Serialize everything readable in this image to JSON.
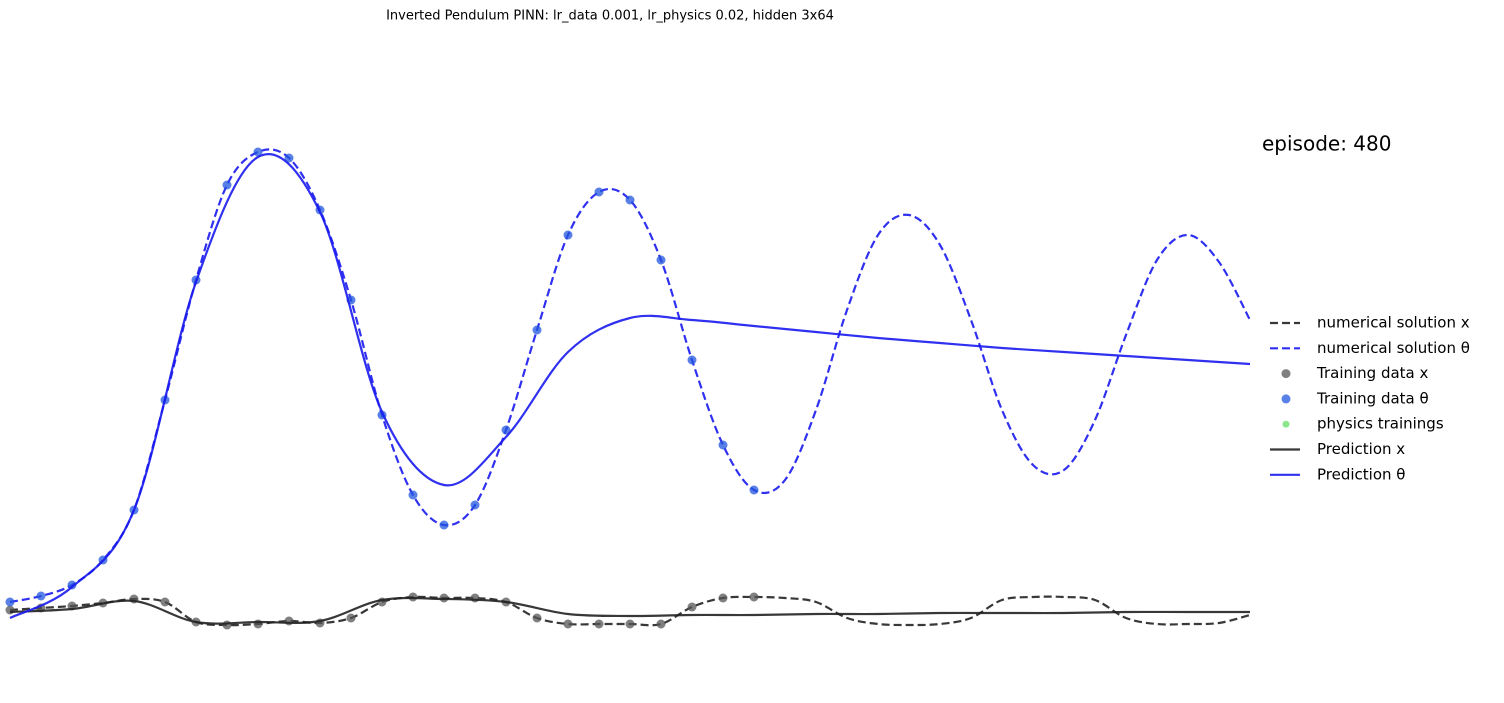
{
  "chart_data": {
    "type": "line",
    "title": "Inverted Pendulum PINN: lr_data 0.001, lr_physics 0.02, hidden 3x64",
    "annotation": "episode: 480",
    "xlim": [
      0,
      10
    ],
    "ylim": [
      -0.9,
      5.8
    ],
    "axis_visible": false,
    "legend": "right",
    "series": [
      {
        "name": "numerical solution x",
        "color": "#222222",
        "linestyle": "dashed",
        "marker": "none",
        "x": [
          0,
          0.25,
          0.5,
          0.75,
          1,
          1.25,
          1.5,
          1.75,
          2,
          2.25,
          2.5,
          2.75,
          3,
          3.25,
          3.5,
          3.75,
          4,
          4.25,
          4.5,
          4.75,
          5,
          5.25,
          5.5,
          5.75,
          6,
          6.25,
          6.5,
          6.75,
          7,
          7.25,
          7.5,
          7.75,
          8,
          8.25,
          8.5,
          8.75,
          9,
          9.25,
          9.5,
          9.75,
          10
        ],
        "values": [
          0.02,
          0.04,
          0.06,
          0.09,
          0.13,
          0.1,
          -0.1,
          -0.13,
          -0.12,
          -0.09,
          -0.11,
          -0.06,
          0.1,
          0.15,
          0.14,
          0.14,
          0.1,
          -0.06,
          -0.12,
          -0.12,
          -0.12,
          -0.12,
          0.05,
          0.14,
          0.15,
          0.14,
          0.1,
          -0.06,
          -0.12,
          -0.13,
          -0.12,
          -0.06,
          0.12,
          0.15,
          0.15,
          0.12,
          -0.06,
          -0.12,
          -0.12,
          -0.11,
          -0.03
        ]
      },
      {
        "name": "numerical solution θ",
        "color": "#1a1aee",
        "linestyle": "dashed",
        "marker": "none",
        "x": [
          0,
          0.25,
          0.5,
          0.75,
          1,
          1.25,
          1.5,
          1.75,
          2,
          2.25,
          2.5,
          2.75,
          3,
          3.25,
          3.5,
          3.75,
          4,
          4.25,
          4.5,
          4.75,
          5,
          5.25,
          5.5,
          5.75,
          6,
          6.25,
          6.5,
          6.75,
          7,
          7.25,
          7.5,
          7.75,
          8,
          8.25,
          8.5,
          8.75,
          9,
          9.25,
          9.5,
          9.75,
          10
        ],
        "values": [
          0.1,
          0.16,
          0.27,
          0.52,
          1.02,
          2.12,
          3.32,
          4.27,
          4.6,
          4.54,
          4.02,
          3.12,
          1.97,
          1.17,
          0.87,
          1.07,
          1.82,
          2.82,
          3.77,
          4.2,
          4.12,
          3.52,
          2.52,
          1.67,
          1.22,
          1.32,
          2.02,
          3.02,
          3.77,
          3.97,
          3.67,
          2.92,
          2.02,
          1.47,
          1.42,
          1.92,
          2.77,
          3.52,
          3.77,
          3.5,
          2.92
        ]
      },
      {
        "name": "Training data x",
        "color": "#555555",
        "linestyle": "none",
        "marker": "circle",
        "x": [
          0,
          0.25,
          0.5,
          0.75,
          1,
          1.25,
          1.5,
          1.75,
          2,
          2.25,
          2.5,
          2.75,
          3,
          3.25,
          3.5,
          3.75,
          4,
          4.25,
          4.5,
          4.75,
          5,
          5.25,
          5.5,
          5.75,
          6
        ],
        "values": [
          0.02,
          0.04,
          0.06,
          0.09,
          0.13,
          0.1,
          -0.1,
          -0.13,
          -0.12,
          -0.09,
          -0.11,
          -0.06,
          0.1,
          0.15,
          0.14,
          0.14,
          0.1,
          -0.06,
          -0.12,
          -0.12,
          -0.12,
          -0.12,
          0.05,
          0.14,
          0.15
        ]
      },
      {
        "name": "Training data θ",
        "color": "#2255dd",
        "linestyle": "none",
        "marker": "circle",
        "x": [
          0,
          0.25,
          0.5,
          0.75,
          1,
          1.25,
          1.5,
          1.75,
          2,
          2.25,
          2.5,
          2.75,
          3,
          3.25,
          3.5,
          3.75,
          4,
          4.25,
          4.5,
          4.75,
          5,
          5.25,
          5.5,
          5.75,
          6
        ],
        "values": [
          0.1,
          0.16,
          0.27,
          0.52,
          1.02,
          2.12,
          3.32,
          4.27,
          4.6,
          4.54,
          4.02,
          3.12,
          1.97,
          1.17,
          0.87,
          1.07,
          1.82,
          2.82,
          3.77,
          4.2,
          4.12,
          3.52,
          2.52,
          1.67,
          1.22
        ]
      },
      {
        "name": "physics trainings",
        "color": "#66dd66",
        "linestyle": "none",
        "marker": "circle",
        "x": [],
        "values": []
      },
      {
        "name": "Prediction x",
        "color": "#222222",
        "linestyle": "solid",
        "marker": "none",
        "x": [
          0,
          0.5,
          1,
          1.5,
          2,
          2.5,
          3,
          3.5,
          4,
          4.5,
          5,
          5.5,
          6,
          6.5,
          7,
          7.5,
          8,
          8.5,
          9,
          9.5,
          10
        ],
        "values": [
          0.0,
          0.03,
          0.11,
          -0.1,
          -0.1,
          -0.09,
          0.12,
          0.13,
          0.1,
          -0.02,
          -0.04,
          -0.03,
          -0.03,
          -0.02,
          -0.02,
          -0.01,
          -0.01,
          -0.01,
          0.0,
          0.0,
          0.0
        ]
      },
      {
        "name": "Prediction θ",
        "color": "#1a1aee",
        "linestyle": "solid",
        "marker": "none",
        "x": [
          0,
          0.5,
          1,
          1.5,
          2,
          2.5,
          3,
          3.5,
          4,
          4.5,
          5,
          5.5,
          6,
          6.5,
          7,
          7.5,
          8,
          8.5,
          9,
          9.5,
          10
        ],
        "values": [
          -0.06,
          0.25,
          1.02,
          3.3,
          4.55,
          4.0,
          2.0,
          1.27,
          1.75,
          2.6,
          2.94,
          2.92,
          2.86,
          2.8,
          2.74,
          2.69,
          2.64,
          2.6,
          2.56,
          2.52,
          2.48
        ]
      }
    ]
  }
}
